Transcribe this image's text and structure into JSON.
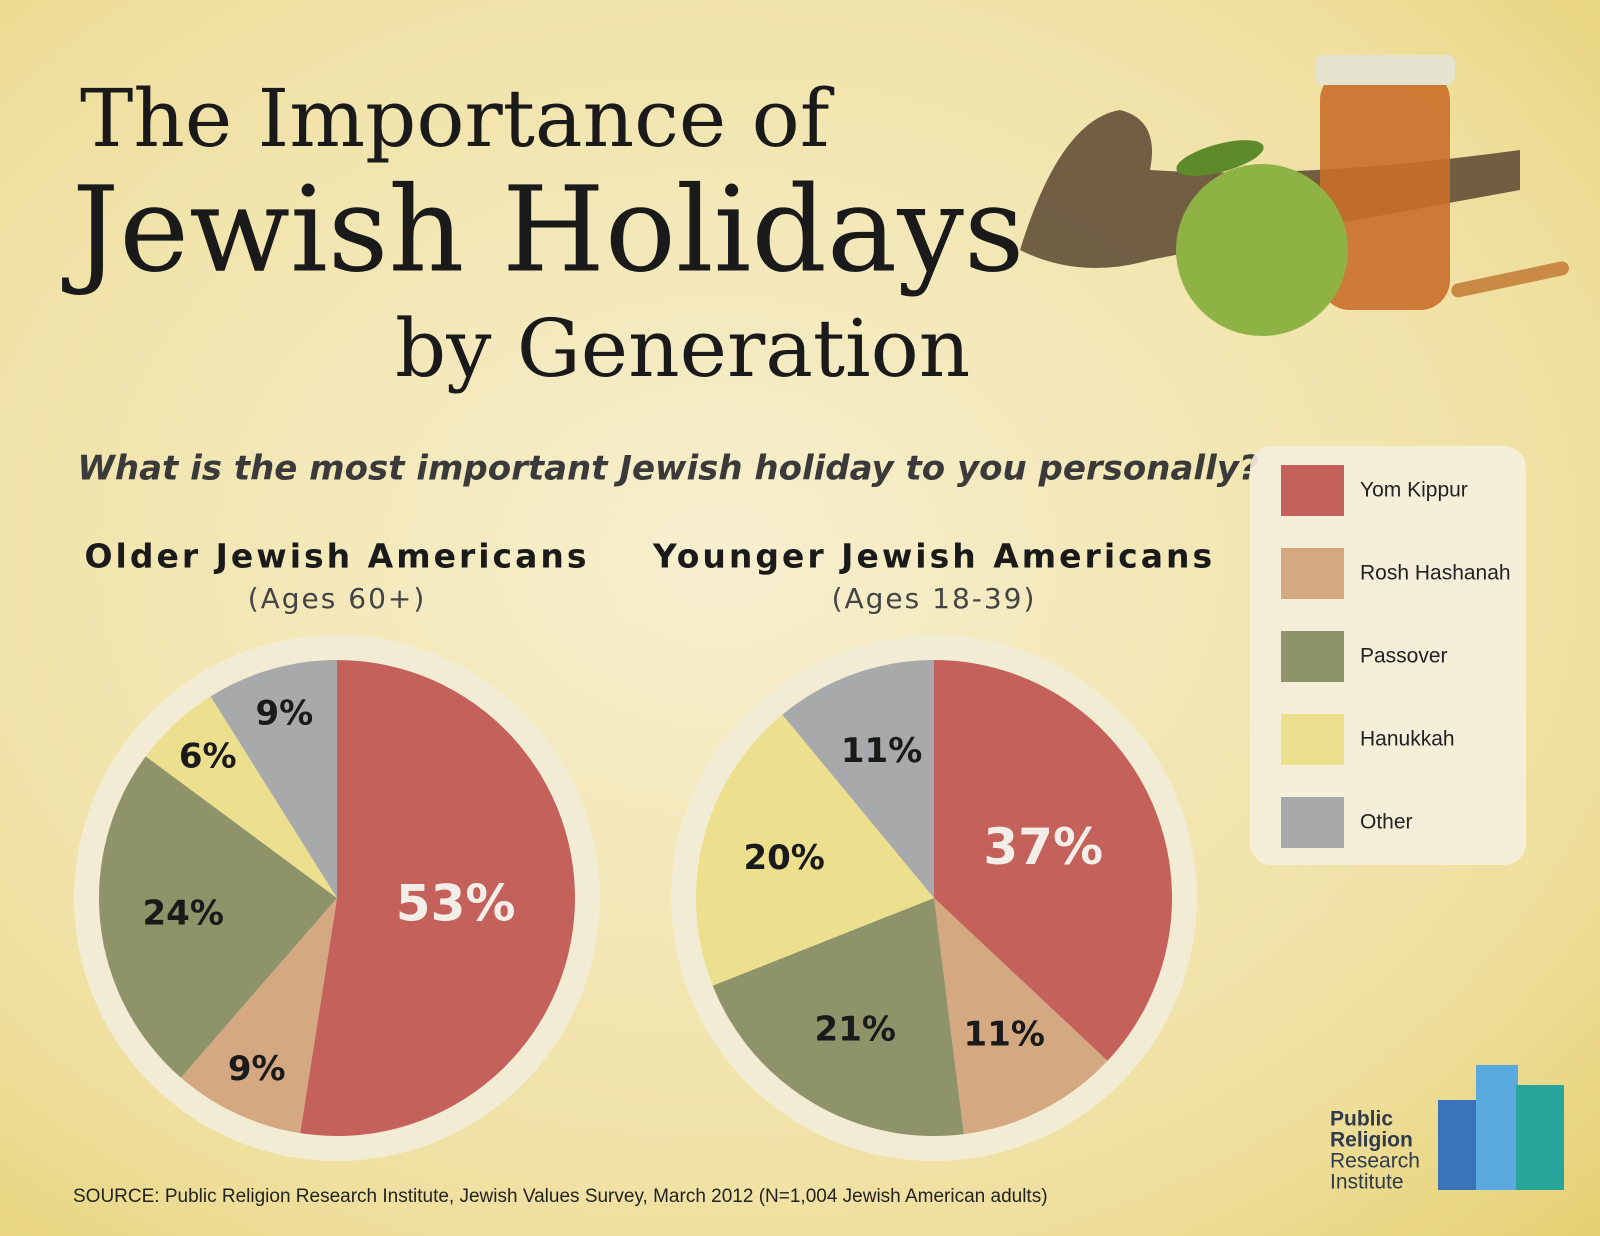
{
  "header": {
    "title": [
      "The Importance of",
      "Jewish Holidays",
      "by Generation"
    ],
    "question": "What is the most important Jewish holiday to you personally?"
  },
  "chart_data": [
    {
      "type": "pie",
      "title": "Older Jewish Americans",
      "subtitle": "(Ages 60+)",
      "categories": [
        "Yom Kippur",
        "Rosh Hashanah",
        "Passover",
        "Hanukkah",
        "Other"
      ],
      "values": [
        53,
        9,
        24,
        6,
        9
      ],
      "value_labels": [
        "53%",
        "9%",
        "24%",
        "6%",
        "9%"
      ],
      "colors": [
        "#c4615a",
        "#d4a982",
        "#8f936a",
        "#ecdf8d",
        "#a8a9ab"
      ]
    },
    {
      "type": "pie",
      "title": "Younger Jewish Americans",
      "subtitle": "(Ages 18-39)",
      "categories": [
        "Yom Kippur",
        "Rosh Hashanah",
        "Passover",
        "Hanukkah",
        "Other"
      ],
      "values": [
        37,
        11,
        21,
        20,
        11
      ],
      "value_labels": [
        "37%",
        "11%",
        "21%",
        "20%",
        "11%"
      ],
      "colors": [
        "#c4615a",
        "#d4a982",
        "#8f936a",
        "#ecdf8d",
        "#a8a9ab"
      ]
    }
  ],
  "source": "SOURCE: Public Religion Research Institute, Jewish Values Survey, March 2012 (N=1,004 Jewish American adults)",
  "logo": [
    "Public",
    "Religion",
    "Research",
    "Institute"
  ]
}
